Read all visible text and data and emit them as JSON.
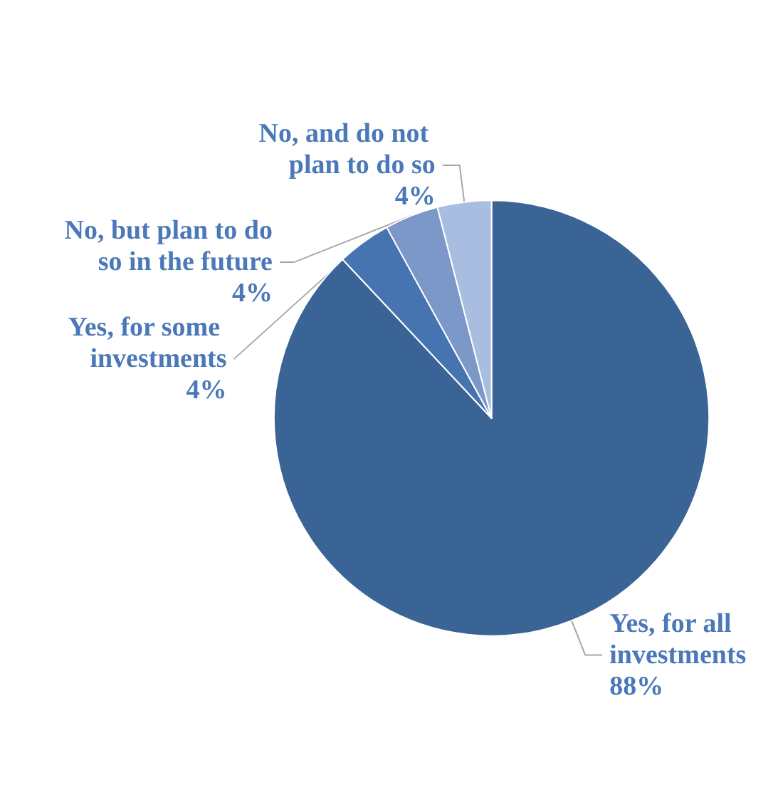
{
  "chart_data": {
    "type": "pie",
    "categories": [
      "Yes, for all investments",
      "Yes, for some investments",
      "No, but plan to do so in the future",
      "No, and do not plan to do so"
    ],
    "values": [
      88,
      4,
      4,
      4
    ],
    "colors": [
      "#3b6496",
      "#4674b0",
      "#7b98c8",
      "#a9bde0"
    ],
    "value_labels": [
      "88%",
      "4%",
      "4%",
      "4%"
    ],
    "legend": false
  }
}
